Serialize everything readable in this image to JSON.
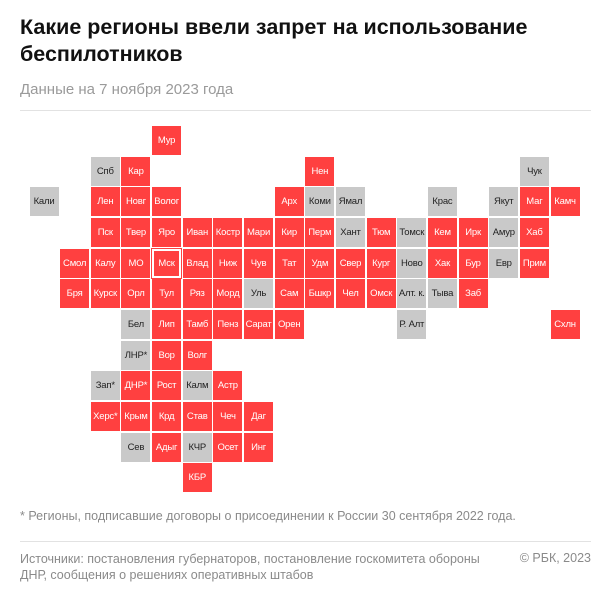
{
  "header": {
    "title": "Какие регионы ввели запрет на использование беспилотников",
    "subtitle": "Данные на 7 ноября 2023 года"
  },
  "colors": {
    "banned": "#ff4040",
    "not_banned": "#c9c9c9"
  },
  "chart_data": {
    "type": "tile-map",
    "categories": [
      "banned",
      "not_banned"
    ],
    "regions": [
      {
        "label": "Мур",
        "banned": true
      },
      {
        "label": "Спб",
        "banned": false
      },
      {
        "label": "Кар",
        "banned": true
      },
      {
        "label": "Нен",
        "banned": true
      },
      {
        "label": "Чук",
        "banned": false
      },
      {
        "label": "Кали",
        "banned": false
      },
      {
        "label": "Лен",
        "banned": true
      },
      {
        "label": "Новг",
        "banned": true
      },
      {
        "label": "Волог",
        "banned": true
      },
      {
        "label": "Арх",
        "banned": true
      },
      {
        "label": "Коми",
        "banned": false
      },
      {
        "label": "Ямал",
        "banned": false
      },
      {
        "label": "Крас",
        "banned": false
      },
      {
        "label": "Якут",
        "banned": false
      },
      {
        "label": "Маг",
        "banned": true
      },
      {
        "label": "Камч",
        "banned": true
      },
      {
        "label": "Пск",
        "banned": true
      },
      {
        "label": "Твер",
        "banned": true
      },
      {
        "label": "Яро",
        "banned": true
      },
      {
        "label": "Иван",
        "banned": true
      },
      {
        "label": "Костр",
        "banned": true
      },
      {
        "label": "Мари",
        "banned": true
      },
      {
        "label": "Кир",
        "banned": true
      },
      {
        "label": "Перм",
        "banned": true
      },
      {
        "label": "Хант",
        "banned": false
      },
      {
        "label": "Тюм",
        "banned": true
      },
      {
        "label": "Томск",
        "banned": false
      },
      {
        "label": "Кем",
        "banned": true
      },
      {
        "label": "Ирк",
        "banned": true
      },
      {
        "label": "Амур",
        "banned": false
      },
      {
        "label": "Хаб",
        "banned": true
      },
      {
        "label": "Смол",
        "banned": true
      },
      {
        "label": "Калу",
        "banned": true
      },
      {
        "label": "МО",
        "banned": true
      },
      {
        "label": "Мск",
        "banned": true,
        "capital": true
      },
      {
        "label": "Влад",
        "banned": true
      },
      {
        "label": "Ниж",
        "banned": true
      },
      {
        "label": "Чув",
        "banned": true
      },
      {
        "label": "Тат",
        "banned": true
      },
      {
        "label": "Удм",
        "banned": true
      },
      {
        "label": "Свер",
        "banned": true
      },
      {
        "label": "Кург",
        "banned": true
      },
      {
        "label": "Ново",
        "banned": false
      },
      {
        "label": "Хак",
        "banned": true
      },
      {
        "label": "Бур",
        "banned": true
      },
      {
        "label": "Евр",
        "banned": false
      },
      {
        "label": "Прим",
        "banned": true
      },
      {
        "label": "Бря",
        "banned": true
      },
      {
        "label": "Курск",
        "banned": true
      },
      {
        "label": "Орл",
        "banned": true
      },
      {
        "label": "Тул",
        "banned": true
      },
      {
        "label": "Ряз",
        "banned": true
      },
      {
        "label": "Морд",
        "banned": true
      },
      {
        "label": "Уль",
        "banned": false
      },
      {
        "label": "Сам",
        "banned": true
      },
      {
        "label": "Бшкр",
        "banned": true
      },
      {
        "label": "Чел",
        "banned": true
      },
      {
        "label": "Омск",
        "banned": true
      },
      {
        "label": "Алт. к.",
        "banned": false
      },
      {
        "label": "Тыва",
        "banned": false
      },
      {
        "label": "Заб",
        "banned": true
      },
      {
        "label": "Бел",
        "banned": false
      },
      {
        "label": "Лип",
        "banned": true
      },
      {
        "label": "Тамб",
        "banned": true
      },
      {
        "label": "Пенз",
        "banned": true
      },
      {
        "label": "Сарат",
        "banned": true
      },
      {
        "label": "Орен",
        "banned": true
      },
      {
        "label": "Р. Алт",
        "banned": false
      },
      {
        "label": "Схлн",
        "banned": true
      },
      {
        "label": "ЛНР*",
        "banned": false
      },
      {
        "label": "Вор",
        "banned": true
      },
      {
        "label": "Волг",
        "banned": true
      },
      {
        "label": "Зап*",
        "banned": false
      },
      {
        "label": "ДНР*",
        "banned": true
      },
      {
        "label": "Рост",
        "banned": true
      },
      {
        "label": "Калм",
        "banned": false
      },
      {
        "label": "Астр",
        "banned": true
      },
      {
        "label": "Херс*",
        "banned": true
      },
      {
        "label": "Крым",
        "banned": true
      },
      {
        "label": "Крд",
        "banned": true
      },
      {
        "label": "Став",
        "banned": true
      },
      {
        "label": "Чеч",
        "banned": true
      },
      {
        "label": "Даг",
        "banned": true
      },
      {
        "label": "Сев",
        "banned": false
      },
      {
        "label": "Адыг",
        "banned": true
      },
      {
        "label": "КЧР",
        "banned": false
      },
      {
        "label": "Осет",
        "banned": true
      },
      {
        "label": "Инг",
        "banned": true
      },
      {
        "label": "КБР",
        "banned": true
      }
    ]
  },
  "footer": {
    "footnote": "* Регионы, подписавшие договоры о присоединении к России 30 сентября 2022 года.",
    "sources": "Источники: постановления губернаторов, постановление госкомитета обороны ДНР, сообщения о решениях оперативных штабов",
    "copyright": "© РБК, 2023"
  }
}
